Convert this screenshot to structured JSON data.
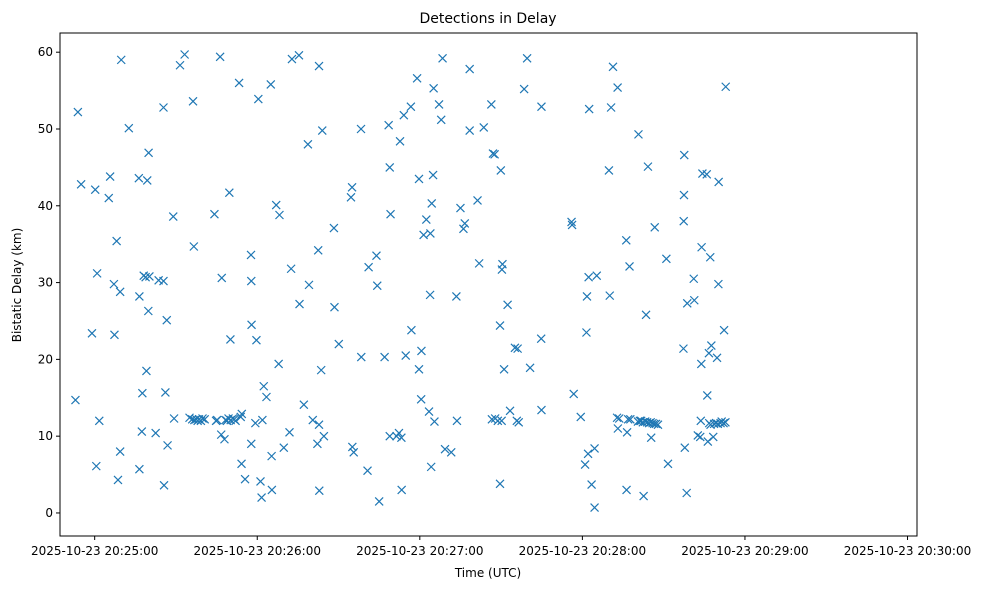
{
  "chart_data": {
    "type": "scatter",
    "title": "Detections in Delay",
    "xlabel": "Time (UTC)",
    "ylabel": "Bistatic Delay (km)",
    "x_unit": "seconds since 2025-10-23 20:24:00",
    "xlim": [
      47.2,
      363.5
    ],
    "ylim": [
      -3,
      62.5
    ],
    "x_ticks": [
      {
        "value": 60,
        "label": "2025-10-23 20:25:00"
      },
      {
        "value": 120,
        "label": "2025-10-23 20:26:00"
      },
      {
        "value": 180,
        "label": "2025-10-23 20:27:00"
      },
      {
        "value": 240,
        "label": "2025-10-23 20:28:00"
      },
      {
        "value": 300,
        "label": "2025-10-23 20:29:00"
      },
      {
        "value": 360,
        "label": "2025-10-23 20:30:00"
      }
    ],
    "y_ticks": [
      {
        "value": 0,
        "label": "0"
      },
      {
        "value": 10,
        "label": "10"
      },
      {
        "value": 20,
        "label": "20"
      },
      {
        "value": 30,
        "label": "30"
      },
      {
        "value": 40,
        "label": "40"
      },
      {
        "value": 50,
        "label": "50"
      },
      {
        "value": 60,
        "label": "60"
      }
    ],
    "marker": "x",
    "color": "#1f77b4",
    "grid": false,
    "legend": "none",
    "series": [
      {
        "name": "detections",
        "points": [
          [
            52.9,
            14.7
          ],
          [
            53.8,
            52.2
          ],
          [
            55.0,
            42.8
          ],
          [
            59.0,
            23.4
          ],
          [
            60.2,
            42.1
          ],
          [
            60.6,
            6.1
          ],
          [
            60.9,
            31.2
          ],
          [
            61.7,
            12.0
          ],
          [
            65.2,
            41.0
          ],
          [
            65.7,
            43.8
          ],
          [
            67.1,
            29.8
          ],
          [
            67.3,
            23.2
          ],
          [
            68.1,
            35.4
          ],
          [
            68.6,
            4.3
          ],
          [
            69.4,
            28.8
          ],
          [
            69.4,
            8.0
          ],
          [
            69.8,
            59.0
          ],
          [
            72.6,
            50.1
          ],
          [
            76.3,
            43.6
          ],
          [
            76.5,
            28.2
          ],
          [
            76.5,
            5.7
          ],
          [
            77.4,
            10.6
          ],
          [
            77.6,
            15.6
          ],
          [
            78.1,
            30.9
          ],
          [
            78.8,
            30.7
          ],
          [
            79.1,
            18.5
          ],
          [
            79.4,
            43.3
          ],
          [
            79.8,
            26.3
          ],
          [
            79.9,
            46.9
          ],
          [
            80.2,
            30.8
          ],
          [
            82.5,
            10.4
          ],
          [
            83.6,
            30.3
          ],
          [
            85.4,
            30.2
          ],
          [
            85.4,
            52.8
          ],
          [
            85.6,
            3.6
          ],
          [
            86.1,
            15.7
          ],
          [
            86.6,
            25.1
          ],
          [
            86.9,
            8.8
          ],
          [
            89.0,
            38.6
          ],
          [
            89.3,
            12.3
          ],
          [
            91.5,
            58.3
          ],
          [
            93.2,
            59.7
          ],
          [
            95.0,
            12.4
          ],
          [
            96.0,
            12.2
          ],
          [
            96.3,
            53.6
          ],
          [
            96.6,
            34.7
          ],
          [
            96.8,
            12.1
          ],
          [
            97.5,
            12.2
          ],
          [
            98.0,
            12.0
          ],
          [
            98.5,
            12.2
          ],
          [
            99.2,
            12.0
          ],
          [
            99.8,
            12.3
          ],
          [
            100.6,
            12.2
          ],
          [
            104.2,
            38.9
          ],
          [
            104.8,
            12.0
          ],
          [
            105.2,
            12.1
          ],
          [
            106.3,
            59.4
          ],
          [
            106.7,
            10.2
          ],
          [
            106.9,
            30.6
          ],
          [
            107.9,
            9.6
          ],
          [
            108.3,
            12.1
          ],
          [
            108.8,
            12.0
          ],
          [
            109.4,
            12.3
          ],
          [
            109.7,
            41.7
          ],
          [
            110.1,
            22.6
          ],
          [
            110.2,
            12.1
          ],
          [
            111.0,
            12.3
          ],
          [
            111.5,
            12.2
          ],
          [
            112.0,
            12.0
          ],
          [
            113.3,
            56.0
          ],
          [
            113.9,
            12.5
          ],
          [
            114.2,
            6.4
          ],
          [
            114.3,
            12.9
          ],
          [
            115.5,
            4.4
          ],
          [
            117.7,
            33.6
          ],
          [
            117.8,
            9.0
          ],
          [
            117.8,
            30.2
          ],
          [
            117.9,
            24.5
          ],
          [
            119.3,
            11.7
          ],
          [
            119.7,
            22.5
          ],
          [
            120.4,
            53.9
          ],
          [
            121.2,
            4.1
          ],
          [
            121.6,
            2.0
          ],
          [
            121.9,
            12.1
          ],
          [
            122.4,
            16.5
          ],
          [
            123.4,
            15.1
          ],
          [
            125.0,
            55.8
          ],
          [
            125.3,
            7.4
          ],
          [
            125.4,
            3.0
          ],
          [
            127.0,
            40.1
          ],
          [
            127.9,
            19.4
          ],
          [
            128.2,
            38.8
          ],
          [
            129.8,
            8.5
          ],
          [
            131.9,
            10.5
          ],
          [
            132.5,
            31.8
          ],
          [
            132.8,
            59.1
          ],
          [
            135.4,
            59.6
          ],
          [
            135.6,
            27.2
          ],
          [
            137.2,
            14.1
          ],
          [
            138.7,
            48.0
          ],
          [
            139.1,
            29.7
          ],
          [
            140.5,
            12.1
          ],
          [
            142.2,
            9.0
          ],
          [
            142.5,
            34.2
          ],
          [
            142.8,
            58.2
          ],
          [
            142.8,
            11.5
          ],
          [
            142.9,
            2.9
          ],
          [
            143.6,
            18.6
          ],
          [
            144.0,
            49.8
          ],
          [
            144.6,
            10.0
          ],
          [
            148.3,
            37.1
          ],
          [
            148.5,
            26.8
          ],
          [
            150.1,
            22.0
          ],
          [
            154.6,
            41.1
          ],
          [
            155.0,
            42.4
          ],
          [
            155.1,
            8.6
          ],
          [
            155.6,
            7.9
          ],
          [
            158.3,
            50.0
          ],
          [
            158.4,
            20.3
          ],
          [
            160.7,
            5.5
          ],
          [
            161.1,
            32.0
          ],
          [
            164.0,
            33.5
          ],
          [
            164.3,
            29.6
          ],
          [
            165.0,
            1.5
          ],
          [
            167.0,
            20.3
          ],
          [
            168.5,
            50.5
          ],
          [
            168.9,
            10.0
          ],
          [
            168.9,
            45.0
          ],
          [
            169.2,
            38.9
          ],
          [
            171.4,
            10.0
          ],
          [
            172.3,
            10.4
          ],
          [
            172.7,
            48.4
          ],
          [
            173.2,
            9.8
          ],
          [
            173.3,
            3.0
          ],
          [
            174.1,
            51.8
          ],
          [
            174.8,
            20.5
          ],
          [
            176.7,
            52.9
          ],
          [
            176.9,
            23.8
          ],
          [
            179.0,
            56.6
          ],
          [
            179.7,
            18.7
          ],
          [
            179.7,
            43.5
          ],
          [
            180.5,
            14.8
          ],
          [
            180.6,
            21.1
          ],
          [
            181.4,
            36.2
          ],
          [
            182.4,
            38.2
          ],
          [
            183.4,
            13.2
          ],
          [
            183.8,
            28.4
          ],
          [
            183.9,
            36.4
          ],
          [
            184.2,
            6.0
          ],
          [
            184.4,
            40.3
          ],
          [
            184.9,
            44.0
          ],
          [
            185.1,
            55.3
          ],
          [
            185.4,
            11.9
          ],
          [
            187.1,
            53.2
          ],
          [
            187.9,
            51.2
          ],
          [
            188.4,
            59.2
          ],
          [
            189.3,
            8.3
          ],
          [
            191.6,
            7.9
          ],
          [
            193.5,
            28.2
          ],
          [
            193.7,
            12.0
          ],
          [
            195.0,
            39.7
          ],
          [
            196.1,
            37.0
          ],
          [
            196.6,
            37.7
          ],
          [
            198.4,
            49.8
          ],
          [
            198.4,
            57.8
          ],
          [
            201.3,
            40.7
          ],
          [
            201.9,
            32.5
          ],
          [
            203.6,
            50.2
          ],
          [
            206.4,
            53.2
          ],
          [
            206.6,
            12.2
          ],
          [
            207.0,
            46.8
          ],
          [
            207.6,
            46.7
          ],
          [
            207.8,
            12.3
          ],
          [
            208.8,
            12.0
          ],
          [
            209.6,
            3.8
          ],
          [
            209.6,
            24.4
          ],
          [
            209.9,
            44.6
          ],
          [
            210.2,
            12.0
          ],
          [
            210.3,
            31.7
          ],
          [
            210.5,
            32.4
          ],
          [
            211.1,
            18.7
          ],
          [
            212.4,
            27.1
          ],
          [
            213.3,
            13.3
          ],
          [
            215.1,
            21.5
          ],
          [
            215.8,
            12.0
          ],
          [
            216.1,
            21.4
          ],
          [
            216.5,
            11.8
          ],
          [
            218.5,
            55.2
          ],
          [
            219.6,
            59.2
          ],
          [
            220.7,
            18.9
          ],
          [
            224.8,
            22.7
          ],
          [
            224.9,
            13.4
          ],
          [
            224.9,
            52.9
          ],
          [
            236.0,
            37.9
          ],
          [
            236.2,
            37.5
          ],
          [
            236.8,
            15.5
          ],
          [
            239.4,
            12.5
          ],
          [
            241.0,
            6.3
          ],
          [
            241.5,
            23.5
          ],
          [
            241.7,
            28.2
          ],
          [
            242.1,
            7.7
          ],
          [
            242.3,
            30.7
          ],
          [
            242.5,
            52.6
          ],
          [
            243.4,
            3.7
          ],
          [
            244.5,
            8.4
          ],
          [
            244.5,
            0.7
          ],
          [
            245.3,
            30.9
          ],
          [
            249.8,
            44.6
          ],
          [
            250.1,
            28.3
          ],
          [
            250.6,
            52.8
          ],
          [
            251.3,
            58.1
          ],
          [
            253.0,
            55.4
          ],
          [
            252.8,
            12.4
          ],
          [
            253.1,
            11.0
          ],
          [
            253.6,
            12.3
          ],
          [
            256.2,
            35.5
          ],
          [
            256.3,
            3.0
          ],
          [
            256.5,
            10.5
          ],
          [
            256.9,
            12.2
          ],
          [
            257.4,
            32.1
          ],
          [
            257.7,
            12.2
          ],
          [
            260.5,
            11.9
          ],
          [
            260.7,
            49.3
          ],
          [
            261.2,
            12.0
          ],
          [
            261.7,
            12.0
          ],
          [
            262.3,
            11.8
          ],
          [
            262.6,
            2.2
          ],
          [
            263.2,
            11.9
          ],
          [
            263.5,
            25.8
          ],
          [
            263.9,
            11.8
          ],
          [
            264.2,
            45.1
          ],
          [
            264.6,
            11.7
          ],
          [
            265.2,
            11.8
          ],
          [
            265.4,
            9.8
          ],
          [
            265.9,
            11.7
          ],
          [
            266.5,
            11.6
          ],
          [
            266.7,
            37.2
          ],
          [
            267.2,
            11.6
          ],
          [
            267.9,
            11.5
          ],
          [
            271.0,
            33.1
          ],
          [
            271.6,
            6.4
          ],
          [
            277.6,
            46.6
          ],
          [
            277.5,
            41.4
          ],
          [
            277.4,
            38.0
          ],
          [
            277.3,
            21.4
          ],
          [
            277.8,
            8.5
          ],
          [
            278.5,
            2.6
          ],
          [
            278.7,
            27.3
          ],
          [
            281.1,
            30.5
          ],
          [
            281.3,
            27.7
          ],
          [
            282.6,
            10.1
          ],
          [
            283.5,
            9.9
          ],
          [
            283.7,
            12.0
          ],
          [
            283.9,
            19.4
          ],
          [
            284.0,
            34.6
          ],
          [
            284.3,
            44.2
          ],
          [
            285.9,
            44.1
          ],
          [
            286.1,
            15.3
          ],
          [
            286.3,
            9.3
          ],
          [
            286.7,
            20.8
          ],
          [
            286.8,
            11.7
          ],
          [
            287.2,
            33.3
          ],
          [
            287.3,
            11.5
          ],
          [
            287.6,
            21.8
          ],
          [
            288.3,
            9.9
          ],
          [
            288.6,
            11.6
          ],
          [
            289.3,
            11.7
          ],
          [
            289.7,
            20.2
          ],
          [
            290.0,
            11.6
          ],
          [
            290.2,
            29.8
          ],
          [
            290.3,
            43.1
          ],
          [
            291.0,
            11.7
          ],
          [
            291.4,
            11.9
          ],
          [
            292.1,
            11.7
          ],
          [
            292.3,
            23.8
          ],
          [
            292.8,
            11.8
          ],
          [
            292.9,
            55.5
          ]
        ]
      }
    ]
  }
}
